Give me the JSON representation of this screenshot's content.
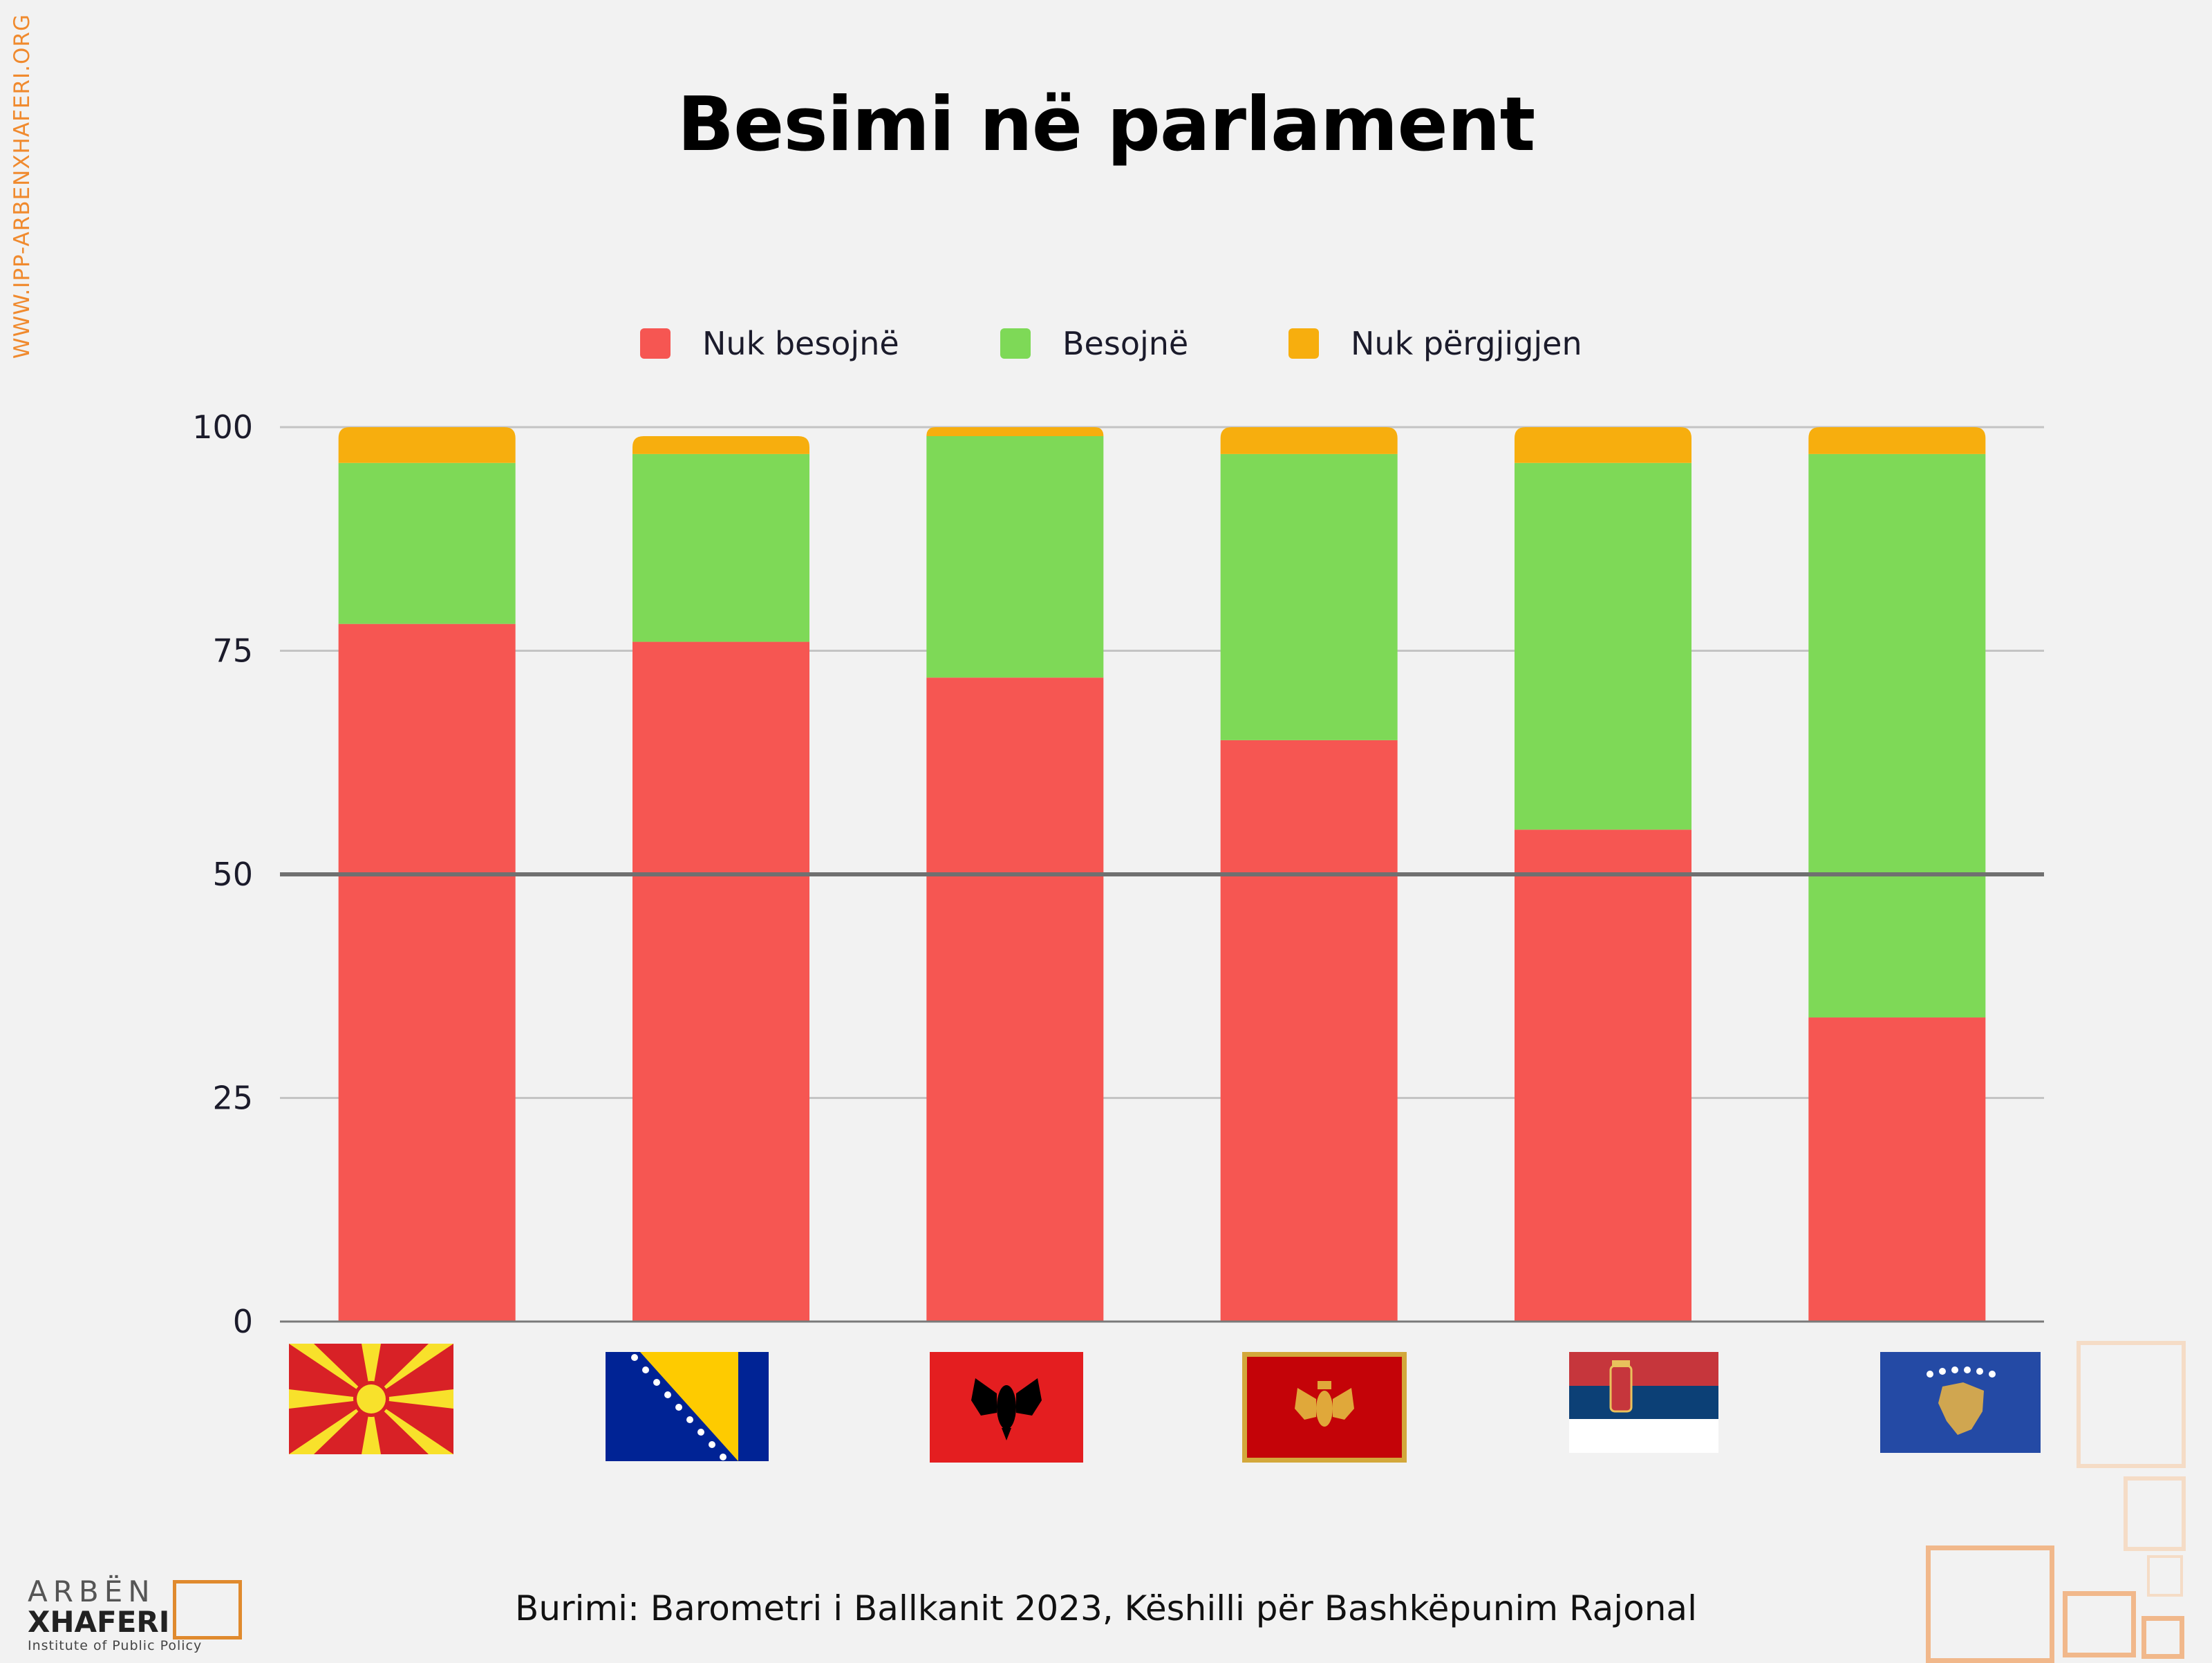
{
  "side_text": "WWW.IPP-ARBENXHAFERI.ORG",
  "source": "Burimi:  Barometri i Ballkanit 2023, Këshilli për Bashkëpunim Rajonal",
  "logo": {
    "line1": "ARBËN",
    "line2": "XHAFERI",
    "line3": "Institute of Public Policy"
  },
  "chart_data": {
    "type": "bar",
    "stacked": true,
    "title": "Besimi në parlament",
    "categories": [
      "North Macedonia",
      "Bosnia and Herzegovina",
      "Albania",
      "Montenegro",
      "Serbia",
      "Kosovo"
    ],
    "series": [
      {
        "name": "Nuk besojnë",
        "color": "#f65652",
        "values": [
          78,
          76,
          72,
          65,
          55,
          34
        ]
      },
      {
        "name": "Besojnë",
        "color": "#7ed957",
        "values": [
          18,
          21,
          27,
          32,
          41,
          63
        ]
      },
      {
        "name": "Nuk përgjigjen",
        "color": "#f7ae0e",
        "values": [
          4,
          2,
          1,
          3,
          4,
          3
        ]
      }
    ],
    "ylim": [
      0,
      100
    ],
    "yticks": [
      "0",
      "25",
      "50",
      "75",
      "100"
    ],
    "grid": true,
    "reference_line": 50,
    "legend_position": "top"
  }
}
